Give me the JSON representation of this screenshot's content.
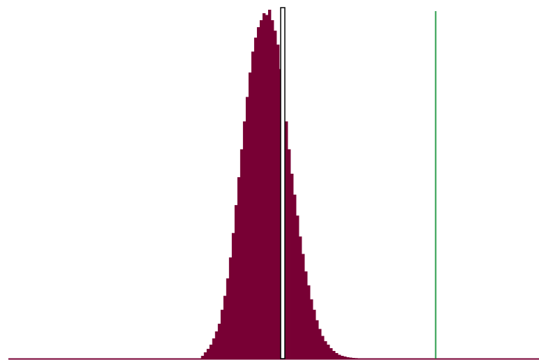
{
  "chart_data": {
    "type": "bar",
    "xlim": [
      0,
      380
    ],
    "ylim": [
      0,
      1
    ],
    "grid": false,
    "legend": "none",
    "colors": {
      "bars": "#780034",
      "baseline": "#780034",
      "reference_line": "#2a9d4b",
      "observed_marker_fill": "#ffffff",
      "observed_marker_stroke": "#000000"
    },
    "bins_x": [
      138,
      140,
      142,
      144,
      146,
      148,
      150,
      152,
      154,
      156,
      158,
      160,
      162,
      164,
      166,
      168,
      170,
      172,
      174,
      176,
      178,
      180,
      182,
      184,
      186,
      188,
      190,
      192,
      194,
      196,
      198,
      200,
      202,
      204,
      206,
      208,
      210,
      212,
      214,
      216,
      218,
      220,
      222,
      224,
      226,
      228,
      230,
      232,
      234,
      236,
      238,
      240,
      242,
      244,
      246,
      248,
      250,
      252,
      254,
      256
    ],
    "values": [
      0.008,
      0.018,
      0.028,
      0.04,
      0.058,
      0.078,
      0.1,
      0.14,
      0.18,
      0.23,
      0.29,
      0.36,
      0.44,
      0.52,
      0.6,
      0.68,
      0.75,
      0.82,
      0.88,
      0.92,
      0.95,
      0.97,
      0.99,
      0.985,
      1.0,
      0.97,
      0.94,
      0.9,
      0.83,
      0.75,
      0.68,
      0.6,
      0.53,
      0.47,
      0.41,
      0.35,
      0.3,
      0.25,
      0.21,
      0.17,
      0.14,
      0.11,
      0.085,
      0.065,
      0.05,
      0.04,
      0.03,
      0.022,
      0.016,
      0.011,
      0.008,
      0.006,
      0.004,
      0.003,
      0.002,
      0.0015,
      0.001,
      0.0008,
      0.0005,
      0.0003
    ],
    "bin_width": 2,
    "observed_marker": {
      "x": 196,
      "height": 1.0
    },
    "reference_line": {
      "x": 306
    }
  }
}
